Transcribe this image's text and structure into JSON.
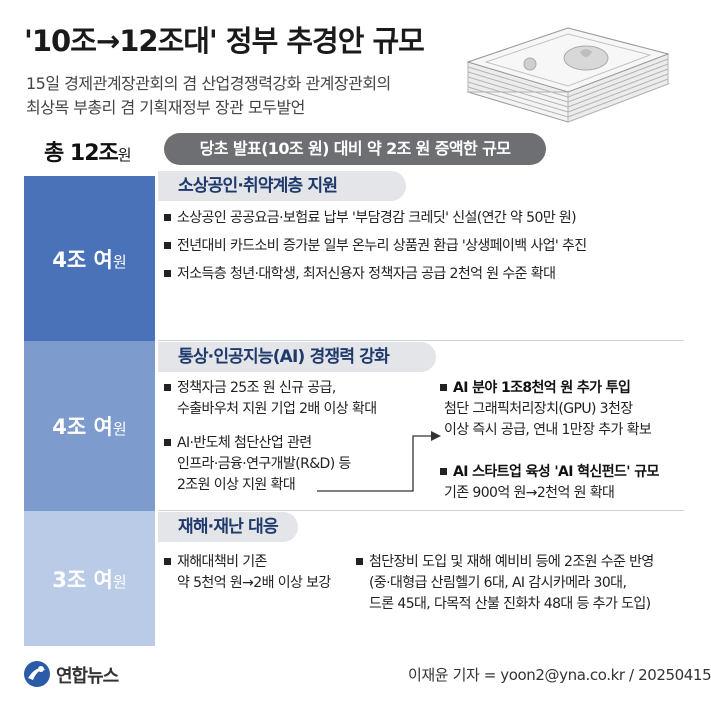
{
  "header": {
    "title": "'10조→12조대' 정부 추경안 규모",
    "subtitle_line1": "15일 경제관계장관회의 겸 산업경쟁력강화 관계장관회의",
    "subtitle_line2": "최상목 부총리 겸 기획재정부 장관 모두발언"
  },
  "total": {
    "label": "총 12조",
    "unit": "원",
    "pill": "당초 발표(10조 원) 대비 약 2조 원 증액한 규모"
  },
  "sections": [
    {
      "amount": "4조 여",
      "unit": "원",
      "title": "소상공인·취약계층 지원",
      "bullets": [
        "소상공인 공공요금·보험료 납부 '부담경감 크레딧' 신설(연간 약 50만 원)",
        "전년대비 카드소비 증가분 일부 온누리 상품권 환급 '상생페이백 사업' 추진",
        "저소득층 청년·대학생, 최저신용자 정책자금 공급 2천억 원 수준 확대"
      ]
    },
    {
      "amount": "4조 여",
      "unit": "원",
      "title": "통상·인공지능(AI) 경쟁력 강화",
      "bullet1": [
        "정책자금 25조 원 신규 공급,",
        "수출바우처 지원 기업 2배 이상 확대"
      ],
      "bullet2": [
        "AI·반도체 첨단산업 관련",
        "인프라·금융·연구개발(R&D) 등",
        "2조원 이상 지원 확대"
      ],
      "right1_title": "AI 분야 1조8천억 원 추가 투입",
      "right1_lines": [
        "첨단 그래픽처리장치(GPU) 3천장",
        "이상 즉시 공급, 연내 1만장 추가 확보"
      ],
      "right2_title": "AI 스타트업 육성 'AI 혁신펀드' 규모",
      "right2_lines": [
        "기존 900억 원→2천억 원 확대"
      ]
    },
    {
      "amount": "3조 여",
      "unit": "원",
      "title": "재해·재난 대응",
      "bullet1": [
        "재해대책비 기존",
        "약 5천억 원→2배 이상 보강"
      ],
      "bullet2": [
        "첨단장비 도입 및 재해 예비비 등에 2조원 수준 반영",
        "(중·대형급 산림헬기 6대, AI 감시카메라 30대,",
        "드론 45대, 다목적 산불 진화차 48대 등 추가 도입)"
      ]
    }
  ],
  "footer": {
    "logo_text": "연합뉴스",
    "credit": "이재윤 기자 = yoon2@yna.co.kr / 20250415"
  },
  "colors": {
    "block1": "#4a72b8",
    "block2": "#7d9bcc",
    "block3": "#b9cbe6",
    "header_text": "#1e3a6d",
    "pill": "#6d6f73"
  }
}
